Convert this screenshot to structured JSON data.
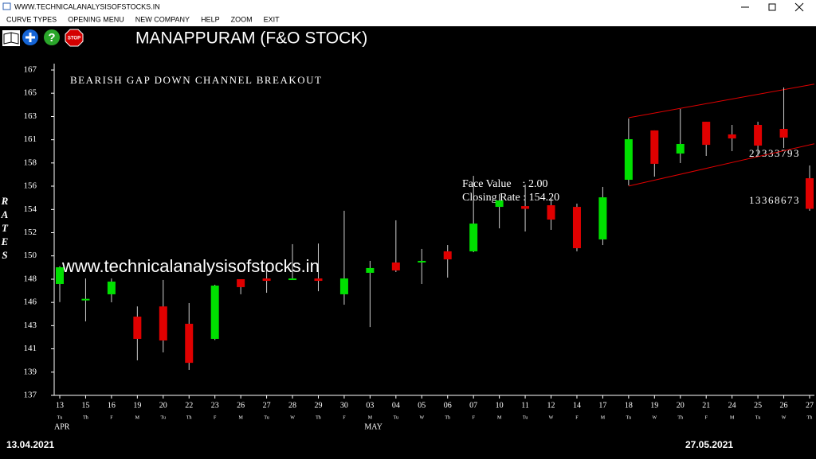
{
  "window": {
    "title": "WWW.TECHNICALANALYSISOFSTOCKS.IN",
    "menu": [
      "CURVE TYPES",
      "OPENING MENU",
      "NEW COMPANY",
      "HELP",
      "ZOOM",
      "EXIT"
    ]
  },
  "toolbar": {
    "help": "?",
    "stop": "STOP"
  },
  "chart_data": {
    "type": "candlestick",
    "title": "MANAPPURAM (F&O STOCK)",
    "annotation": "BEARISH GAP DOWN CHANNEL BREAKOUT",
    "watermark": "www.technicalanalysisofstocks.in",
    "info": [
      "Face Value    : 2.00",
      "Closing Rate : 154.20"
    ],
    "volume_labels": [
      "22333793",
      "13368673"
    ],
    "ylabel": "RATES",
    "start_date": "13.04.2021",
    "end_date": "27.05.2021",
    "categories": [
      "13",
      "15",
      "16",
      "19",
      "20",
      "22",
      "23",
      "26",
      "27",
      "28",
      "29",
      "30",
      "03",
      "04",
      "05",
      "06",
      "07",
      "10",
      "11",
      "12",
      "14",
      "17",
      "18",
      "19",
      "20",
      "21",
      "24",
      "25",
      "26",
      "27"
    ],
    "weekdays": [
      "Tu",
      "Th",
      "F",
      "M",
      "Tu",
      "Th",
      "F",
      "M",
      "Tu",
      "W",
      "Th",
      "F",
      "M",
      "Tu",
      "W",
      "Th",
      "F",
      "M",
      "Tu",
      "W",
      "F",
      "M",
      "Tu",
      "W",
      "Th",
      "F",
      "M",
      "Tu",
      "W",
      "Th"
    ],
    "months": [
      "APR",
      null,
      null,
      null,
      null,
      null,
      null,
      null,
      null,
      null,
      null,
      null,
      "MAY",
      null,
      null,
      null,
      null,
      null,
      null,
      null,
      null,
      null,
      null,
      null,
      null,
      null,
      null,
      null,
      null,
      null
    ],
    "open": [
      147.27,
      145.85,
      146.32,
      144.26,
      145.2,
      143.6,
      142.21,
      147.71,
      147.78,
      147.78,
      147.78,
      146.32,
      148.3,
      149.25,
      149.25,
      150.28,
      150.28,
      154.38,
      154.45,
      154.53,
      154.38,
      151.38,
      156.88,
      161.43,
      159.3,
      162.23,
      161.06,
      161.94,
      161.57,
      157.02
    ],
    "high": [
      148.9,
      147.78,
      147.78,
      145.2,
      147.64,
      145.51,
      147.2,
      147.71,
      148.81,
      150.94,
      151.0,
      154.02,
      149.4,
      153.14,
      150.5,
      150.86,
      157.24,
      155.56,
      156.44,
      155.2,
      154.68,
      156.22,
      162.53,
      161.43,
      163.41,
      162.23,
      161.94,
      162.23,
      165.39,
      158.2
    ],
    "low": [
      145.6,
      143.82,
      145.58,
      140.23,
      140.96,
      139.35,
      142.1,
      146.32,
      146.46,
      147.7,
      146.6,
      145.36,
      143.3,
      148.37,
      147.27,
      147.86,
      150.2,
      152.4,
      152.11,
      152.26,
      150.28,
      150.86,
      156.36,
      157.17,
      158.42,
      159.08,
      159.52,
      159.08,
      159.81,
      154.02
    ],
    "close": [
      148.81,
      145.9,
      147.49,
      142.21,
      142.06,
      140.0,
      147.12,
      146.98,
      147.56,
      147.78,
      147.56,
      147.78,
      148.74,
      148.52,
      149.4,
      149.54,
      152.84,
      154.97,
      154.2,
      153.21,
      150.57,
      155.26,
      160.62,
      158.35,
      160.18,
      160.1,
      160.69,
      160.03,
      160.77,
      154.2
    ],
    "up_color": "#00e000",
    "down_color": "#e00000",
    "trendlines": [
      {
        "color": "#e00000",
        "x": [
          22,
          29
        ],
        "values": [
          162.6,
          165.7
        ]
      },
      {
        "color": "#e00000",
        "x": [
          22,
          29
        ],
        "values": [
          156.3,
          160.2
        ]
      }
    ],
    "ylim": [
      137,
      167
    ],
    "yticks": [
      {
        "value": 137,
        "label": "137"
      },
      {
        "value": 139.14,
        "label": "139"
      },
      {
        "value": 141.29,
        "label": "141"
      },
      {
        "value": 143.43,
        "label": "143"
      },
      {
        "value": 145.57,
        "label": "146"
      },
      {
        "value": 147.71,
        "label": "148"
      },
      {
        "value": 149.86,
        "label": "150"
      },
      {
        "value": 152,
        "label": "152"
      },
      {
        "value": 154.14,
        "label": "154"
      },
      {
        "value": 156.29,
        "label": "156"
      },
      {
        "value": 158.43,
        "label": "158"
      },
      {
        "value": 160.57,
        "label": "161"
      },
      {
        "value": 162.71,
        "label": "163"
      },
      {
        "value": 164.86,
        "label": "165"
      },
      {
        "value": 167,
        "label": "167"
      }
    ]
  }
}
